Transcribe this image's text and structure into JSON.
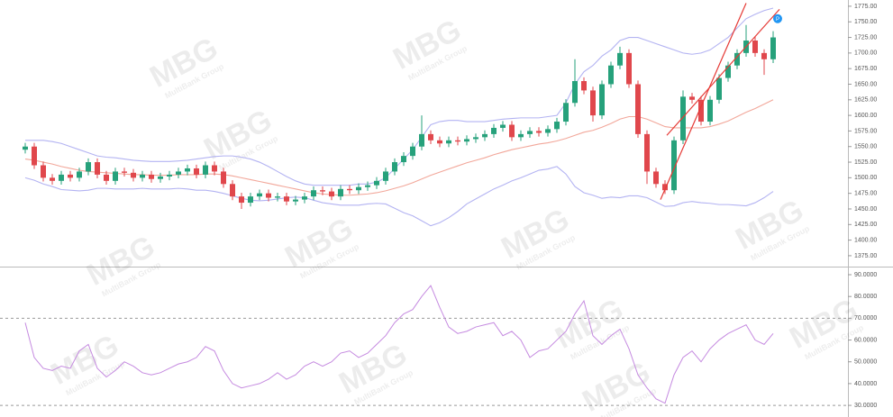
{
  "chart_data": [
    {
      "type": "candlestick",
      "up_color": "#26a17b",
      "down_color": "#e0474c",
      "open": [
        1545,
        1550,
        1520,
        1500,
        1495,
        1505,
        1500,
        1510,
        1525,
        1505,
        1495,
        1510,
        1508,
        1500,
        1505,
        1498,
        1502,
        1505,
        1510,
        1515,
        1505,
        1520,
        1510,
        1490,
        1470,
        1460,
        1470,
        1475,
        1468,
        1470,
        1462,
        1465,
        1470,
        1480,
        1478,
        1470,
        1482,
        1480,
        1485,
        1488,
        1495,
        1510,
        1525,
        1535,
        1550,
        1570,
        1560,
        1555,
        1560,
        1558,
        1562,
        1565,
        1570,
        1580,
        1585,
        1565,
        1570,
        1575,
        1572,
        1578,
        1590,
        1620,
        1655,
        1640,
        1600,
        1650,
        1680,
        1700,
        1650,
        1570,
        1510,
        1490,
        1480,
        1560,
        1630,
        1625,
        1590,
        1625,
        1660,
        1680,
        1700,
        1720,
        1700,
        1690
      ],
      "high": [
        1556,
        1556,
        1526,
        1506,
        1511,
        1511,
        1516,
        1531,
        1531,
        1511,
        1516,
        1516,
        1514,
        1511,
        1511,
        1508,
        1511,
        1516,
        1521,
        1521,
        1526,
        1526,
        1516,
        1496,
        1476,
        1476,
        1481,
        1481,
        1476,
        1476,
        1471,
        1476,
        1486,
        1486,
        1484,
        1488,
        1488,
        1491,
        1494,
        1501,
        1516,
        1531,
        1541,
        1556,
        1600,
        1576,
        1566,
        1566,
        1566,
        1568,
        1571,
        1576,
        1586,
        1591,
        1591,
        1576,
        1581,
        1581,
        1584,
        1596,
        1626,
        1690,
        1661,
        1646,
        1656,
        1686,
        1710,
        1706,
        1656,
        1576,
        1516,
        1496,
        1566,
        1640,
        1636,
        1631,
        1631,
        1666,
        1686,
        1706,
        1745,
        1726,
        1706,
        1735
      ],
      "low": [
        1539,
        1514,
        1494,
        1489,
        1489,
        1494,
        1494,
        1504,
        1499,
        1489,
        1489,
        1502,
        1494,
        1494,
        1492,
        1492,
        1496,
        1499,
        1504,
        1499,
        1499,
        1504,
        1484,
        1464,
        1450,
        1454,
        1464,
        1462,
        1462,
        1456,
        1456,
        1459,
        1464,
        1472,
        1464,
        1464,
        1474,
        1474,
        1479,
        1482,
        1489,
        1504,
        1519,
        1529,
        1544,
        1554,
        1549,
        1549,
        1552,
        1552,
        1556,
        1559,
        1564,
        1574,
        1559,
        1559,
        1564,
        1566,
        1566,
        1572,
        1584,
        1614,
        1634,
        1590,
        1594,
        1644,
        1674,
        1644,
        1564,
        1490,
        1484,
        1474,
        1474,
        1554,
        1619,
        1584,
        1584,
        1619,
        1654,
        1674,
        1694,
        1694,
        1665,
        1684
      ],
      "close": [
        1550,
        1520,
        1500,
        1495,
        1505,
        1500,
        1510,
        1525,
        1505,
        1495,
        1510,
        1508,
        1500,
        1505,
        1498,
        1502,
        1505,
        1510,
        1515,
        1505,
        1520,
        1510,
        1490,
        1470,
        1460,
        1470,
        1475,
        1468,
        1470,
        1462,
        1465,
        1470,
        1480,
        1478,
        1470,
        1482,
        1480,
        1485,
        1488,
        1495,
        1510,
        1525,
        1535,
        1550,
        1570,
        1560,
        1555,
        1560,
        1558,
        1562,
        1565,
        1570,
        1580,
        1585,
        1565,
        1570,
        1575,
        1572,
        1578,
        1590,
        1620,
        1655,
        1640,
        1600,
        1650,
        1680,
        1700,
        1650,
        1570,
        1510,
        1490,
        1480,
        1560,
        1630,
        1625,
        1590,
        1625,
        1660,
        1680,
        1700,
        1720,
        1700,
        1690,
        1725
      ],
      "series": [
        {
          "color": "#b3b3f2",
          "values": [
            1560,
            1560,
            1560,
            1558,
            1555,
            1550,
            1545,
            1540,
            1535,
            1533,
            1532,
            1530,
            1528,
            1527,
            1526,
            1526,
            1526,
            1527,
            1528,
            1530,
            1532,
            1534,
            1535,
            1535,
            1533,
            1530,
            1525,
            1518,
            1510,
            1502,
            1495,
            1490,
            1488,
            1488,
            1488,
            1488,
            1488,
            1490,
            1490,
            1493,
            1500,
            1515,
            1530,
            1545,
            1565,
            1585,
            1590,
            1592,
            1592,
            1590,
            1590,
            1590,
            1592,
            1594,
            1595,
            1596,
            1596,
            1596,
            1598,
            1600,
            1620,
            1650,
            1670,
            1680,
            1695,
            1705,
            1720,
            1725,
            1725,
            1720,
            1715,
            1710,
            1705,
            1700,
            1698,
            1700,
            1705,
            1715,
            1725,
            1740,
            1755,
            1762,
            1768,
            1772
          ]
        },
        {
          "color": "#f2a79a",
          "values": [
            1530,
            1528,
            1525,
            1522,
            1518,
            1515,
            1512,
            1510,
            1509,
            1508,
            1507,
            1506,
            1505,
            1505,
            1504,
            1504,
            1504,
            1505,
            1505,
            1505,
            1506,
            1506,
            1505,
            1503,
            1500,
            1497,
            1494,
            1491,
            1488,
            1485,
            1482,
            1479,
            1476,
            1474,
            1473,
            1472,
            1472,
            1473,
            1474,
            1476,
            1479,
            1483,
            1487,
            1492,
            1498,
            1504,
            1509,
            1514,
            1519,
            1524,
            1528,
            1532,
            1537,
            1541,
            1545,
            1548,
            1551,
            1554,
            1556,
            1559,
            1563,
            1568,
            1573,
            1576,
            1581,
            1587,
            1594,
            1598,
            1598,
            1594,
            1588,
            1582,
            1580,
            1580,
            1580,
            1580,
            1582,
            1586,
            1591,
            1598,
            1605,
            1611,
            1618,
            1625
          ]
        },
        {
          "color": "#b3b3f2",
          "values": [
            1500,
            1496,
            1490,
            1486,
            1481,
            1480,
            1479,
            1480,
            1483,
            1483,
            1482,
            1482,
            1482,
            1483,
            1482,
            1482,
            1482,
            1483,
            1482,
            1480,
            1480,
            1478,
            1475,
            1471,
            1467,
            1464,
            1463,
            1464,
            1466,
            1468,
            1469,
            1468,
            1464,
            1460,
            1458,
            1456,
            1456,
            1456,
            1458,
            1459,
            1458,
            1451,
            1444,
            1439,
            1431,
            1423,
            1428,
            1436,
            1446,
            1458,
            1466,
            1474,
            1482,
            1488,
            1495,
            1500,
            1506,
            1512,
            1514,
            1518,
            1506,
            1486,
            1476,
            1472,
            1467,
            1469,
            1468,
            1471,
            1471,
            1468,
            1461,
            1454,
            1455,
            1460,
            1462,
            1460,
            1459,
            1457,
            1457,
            1456,
            1455,
            1460,
            1468,
            1478
          ]
        }
      ],
      "trendlines": [
        {
          "color": "#e53935",
          "x": [
            70.5,
            80
          ],
          "values": [
            1465,
            1780
          ]
        },
        {
          "color": "#e53935",
          "x": [
            71.2,
            83.7
          ],
          "values": [
            1568,
            1770
          ]
        }
      ],
      "marker": {
        "label": "P",
        "index": 83.5,
        "value": 1755,
        "color": "#2196f3"
      },
      "ylim": [
        1359,
        1785
      ],
      "yticks": [
        {
          "value": 1375,
          "label": "1375.00"
        },
        {
          "value": 1400,
          "label": "1400.00"
        },
        {
          "value": 1425,
          "label": "1425.00"
        },
        {
          "value": 1450,
          "label": "1450.00"
        },
        {
          "value": 1475,
          "label": "1475.00"
        },
        {
          "value": 1500,
          "label": "1500.00"
        },
        {
          "value": 1525,
          "label": "1525.00"
        },
        {
          "value": 1550,
          "label": "1550.00"
        },
        {
          "value": 1575,
          "label": "1575.00"
        },
        {
          "value": 1600,
          "label": "1600.00"
        },
        {
          "value": 1625,
          "label": "1625.00"
        },
        {
          "value": 1650,
          "label": "1650.00"
        },
        {
          "value": 1675,
          "label": "1675.00"
        },
        {
          "value": 1700,
          "label": "1700.00"
        },
        {
          "value": 1725,
          "label": "1725.00"
        },
        {
          "value": 1750,
          "label": "1750.00"
        },
        {
          "value": 1775,
          "label": "1775.00"
        }
      ]
    },
    {
      "type": "line",
      "series": [
        {
          "color": "#c58ae0",
          "values": [
            68,
            52,
            47,
            46,
            48,
            47,
            55,
            58,
            47,
            43,
            46,
            50,
            48,
            45,
            44,
            45,
            47,
            49,
            50,
            52,
            57,
            55,
            46,
            40,
            38,
            39,
            40,
            42,
            45,
            42,
            44,
            48,
            50,
            48,
            50,
            54,
            55,
            52,
            54,
            58,
            62,
            68,
            72,
            74,
            80,
            85,
            75,
            66,
            63,
            64,
            66,
            67,
            68,
            62,
            64,
            60,
            52,
            55,
            56,
            60,
            64,
            72,
            78,
            62,
            58,
            62,
            65,
            56,
            44,
            38,
            33,
            31,
            44,
            52,
            55,
            50,
            56,
            60,
            63,
            65,
            67,
            60,
            58,
            63
          ]
        }
      ],
      "levels": [
        70,
        30
      ],
      "ylim": [
        25.9,
        92.9
      ],
      "yticks": [
        {
          "value": 30,
          "label": "30.0000"
        },
        {
          "value": 40,
          "label": "40.0000"
        },
        {
          "value": 50,
          "label": "50.0000"
        },
        {
          "value": 60,
          "label": "60.0000"
        },
        {
          "value": 70,
          "label": "70.0000"
        },
        {
          "value": 80,
          "label": "80.0000"
        },
        {
          "value": 90,
          "label": "90.0000"
        }
      ]
    }
  ],
  "watermark": {
    "logo": "MBG",
    "name": "MultiBank Group"
  }
}
